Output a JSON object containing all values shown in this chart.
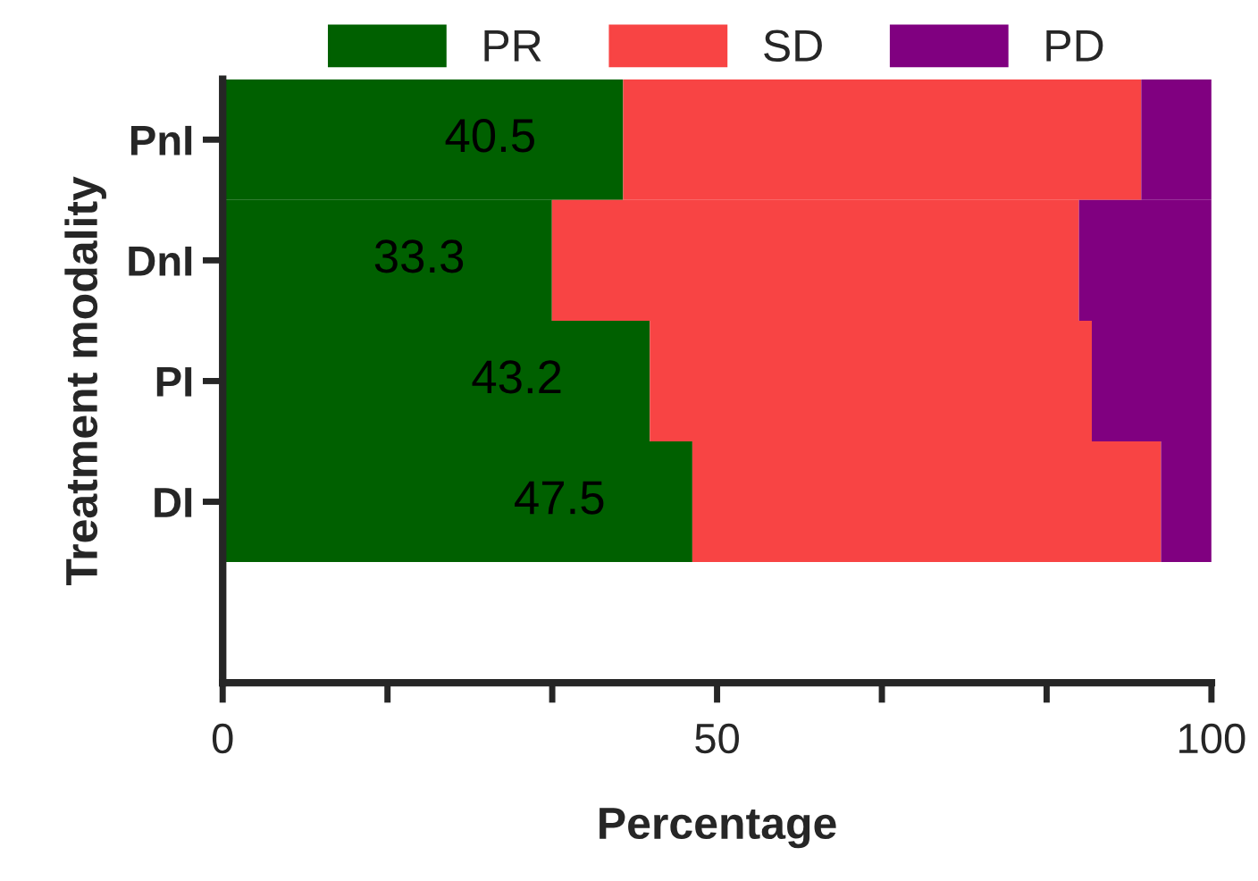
{
  "chart_data": {
    "type": "bar",
    "orientation": "horizontal",
    "stacked": true,
    "xlabel": "Percentage",
    "ylabel": "Treatment modality",
    "categories": [
      "PnI",
      "DnI",
      "PI",
      "DI"
    ],
    "series": [
      {
        "name": "PR",
        "color": "#006000",
        "values": [
          40.5,
          33.3,
          43.2,
          47.5
        ],
        "value_labels": [
          "40.5",
          "33.3",
          "43.2",
          "47.5"
        ]
      },
      {
        "name": "SD",
        "color": "#f84444",
        "values": [
          52.4,
          53.3,
          44.7,
          47.4
        ]
      },
      {
        "name": "PD",
        "color": "#800080",
        "values": [
          7.1,
          13.4,
          12.1,
          5.1
        ]
      }
    ],
    "xlim": [
      0,
      100
    ],
    "xticks": [
      0,
      {
        "value": 16.67,
        "label": null
      },
      {
        "value": 33.33,
        "label": null
      },
      50,
      {
        "value": 66.67,
        "label": null
      },
      {
        "value": 83.33,
        "label": null
      },
      100
    ],
    "legend": "top",
    "grid": false
  }
}
